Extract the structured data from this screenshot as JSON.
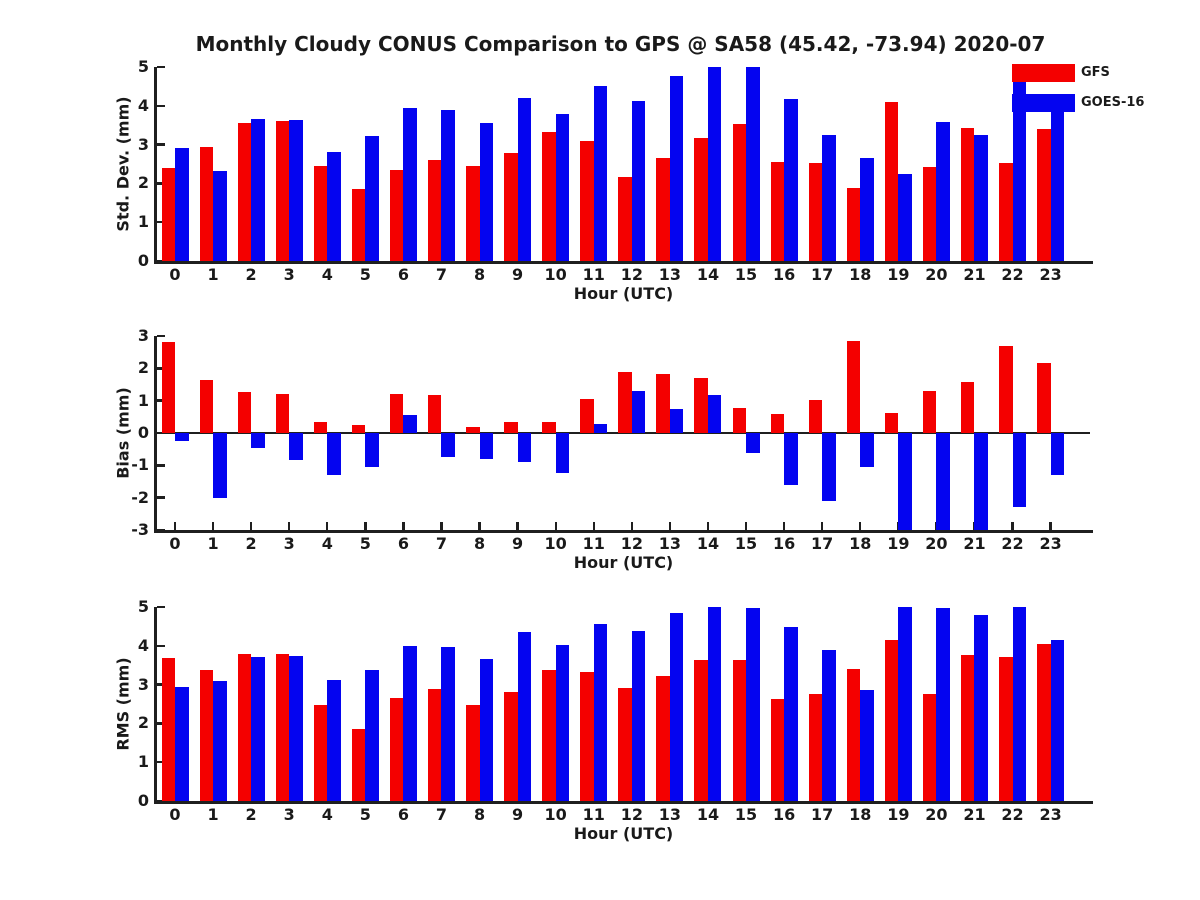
{
  "title": "Monthly Cloudy CONUS Comparison to GPS @ SA58 (45.42, -73.94) 2020-07",
  "colors": {
    "gfs_red": "#f40000",
    "goes16_blue": "#0404f0",
    "axis": "#1f1f1f"
  },
  "legend": {
    "items": [
      {
        "name": "GFS",
        "color": "#f40000"
      },
      {
        "name": "GOES-16",
        "color": "#0404f0"
      }
    ]
  },
  "chart_data": [
    {
      "type": "bar",
      "title": "Monthly Cloudy CONUS Comparison to GPS @ SA58 (45.42, -73.94) 2020-07",
      "ylabel": "Std. Dev. (mm)",
      "xlabel": "Hour (UTC)",
      "ylim": [
        0,
        5
      ],
      "yticks": [
        0,
        1,
        2,
        3,
        4,
        5
      ],
      "grid": false,
      "legend_position": "top-right",
      "categories": [
        0,
        1,
        2,
        3,
        4,
        5,
        6,
        7,
        8,
        9,
        10,
        11,
        12,
        13,
        14,
        15,
        16,
        17,
        18,
        19,
        20,
        21,
        22,
        23
      ],
      "series": [
        {
          "name": "GFS",
          "values": [
            2.4,
            2.95,
            3.55,
            3.6,
            2.45,
            1.85,
            2.35,
            2.6,
            2.45,
            2.78,
            3.32,
            3.1,
            2.17,
            2.65,
            3.18,
            3.52,
            2.55,
            2.52,
            1.88,
            4.1,
            2.42,
            3.43,
            2.52,
            3.4
          ]
        },
        {
          "name": "GOES-16",
          "values": [
            2.92,
            2.33,
            3.67,
            3.63,
            2.82,
            3.22,
            3.95,
            3.88,
            3.55,
            4.2,
            3.8,
            4.5,
            4.13,
            4.78,
            5.0,
            5.0,
            4.17,
            3.25,
            2.66,
            2.25,
            3.58,
            3.25,
            4.68,
            3.95
          ]
        }
      ]
    },
    {
      "type": "bar",
      "ylabel": "Bias (mm)",
      "xlabel": "Hour (UTC)",
      "ylim": [
        -3,
        3
      ],
      "yticks": [
        3,
        2,
        1,
        0,
        -1,
        -2,
        -3
      ],
      "grid": false,
      "categories": [
        0,
        1,
        2,
        3,
        4,
        5,
        6,
        7,
        8,
        9,
        10,
        11,
        12,
        13,
        14,
        15,
        16,
        17,
        18,
        19,
        20,
        21,
        22,
        23
      ],
      "series": [
        {
          "name": "GFS",
          "values": [
            2.8,
            1.65,
            1.28,
            1.22,
            0.35,
            0.25,
            1.22,
            1.18,
            0.2,
            0.35,
            0.35,
            1.06,
            1.88,
            1.81,
            1.7,
            0.78,
            0.6,
            1.03,
            2.85,
            0.62,
            1.3,
            1.58,
            2.7,
            2.18
          ]
        },
        {
          "name": "GOES-16",
          "values": [
            -0.25,
            -2.0,
            -0.45,
            -0.85,
            -1.3,
            -1.05,
            0.55,
            -0.75,
            -0.8,
            -0.9,
            -1.25,
            0.28,
            1.31,
            0.75,
            1.16,
            -0.63,
            -1.6,
            -2.1,
            -1.05,
            -3.0,
            -3.0,
            -3.0,
            -2.3,
            -1.3
          ]
        }
      ]
    },
    {
      "type": "bar",
      "ylabel": "RMS (mm)",
      "xlabel": "Hour (UTC)",
      "ylim": [
        0,
        5
      ],
      "yticks": [
        0,
        1,
        2,
        3,
        4,
        5
      ],
      "grid": false,
      "categories": [
        0,
        1,
        2,
        3,
        4,
        5,
        6,
        7,
        8,
        9,
        10,
        11,
        12,
        13,
        14,
        15,
        16,
        17,
        18,
        19,
        20,
        21,
        22,
        23
      ],
      "series": [
        {
          "name": "GFS",
          "values": [
            3.68,
            3.38,
            3.78,
            3.8,
            2.48,
            1.85,
            2.65,
            2.88,
            2.48,
            2.82,
            3.37,
            3.32,
            2.9,
            3.22,
            3.63,
            3.63,
            2.63,
            2.75,
            3.4,
            4.15,
            2.77,
            3.77,
            3.7,
            4.05
          ]
        },
        {
          "name": "GOES-16",
          "values": [
            2.95,
            3.08,
            3.7,
            3.75,
            3.12,
            3.38,
            4.0,
            3.97,
            3.65,
            4.35,
            4.03,
            4.55,
            4.37,
            4.85,
            5.0,
            4.98,
            4.48,
            3.9,
            2.87,
            5.0,
            4.98,
            4.8,
            5.0,
            4.15
          ]
        }
      ]
    }
  ]
}
